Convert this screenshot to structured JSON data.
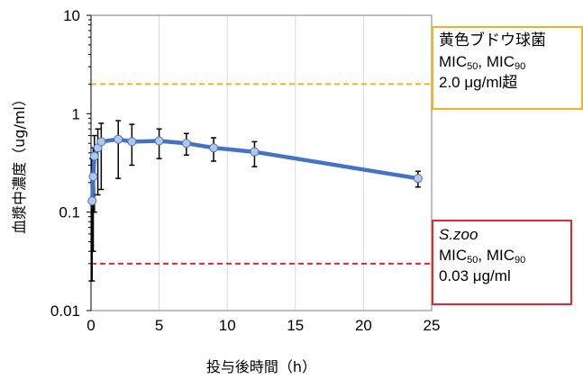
{
  "chart_data": {
    "type": "line",
    "title": "",
    "xlabel": "投与後時間（h）",
    "ylabel": "血漿中濃度（ug/ml）",
    "xlim": [
      0,
      25
    ],
    "ylim": [
      0.01,
      10
    ],
    "y_scale": "log",
    "x_ticks": [
      "0",
      "5",
      "10",
      "15",
      "20",
      "25"
    ],
    "y_ticks": [
      "0.01",
      "0.1",
      "1",
      "10"
    ],
    "grid": "vertical",
    "series": [
      {
        "name": "",
        "color": "#4472c4",
        "marker_fill": "#b4c7e7",
        "points": [
          {
            "x": 0.083,
            "y": 0.13,
            "lo": 0.02,
            "hi": 0.35
          },
          {
            "x": 0.167,
            "y": 0.23,
            "lo": 0.04,
            "hi": 0.45
          },
          {
            "x": 0.25,
            "y": 0.37,
            "lo": 0.1,
            "hi": 0.6
          },
          {
            "x": 0.5,
            "y": 0.45,
            "lo": 0.15,
            "hi": 0.7
          },
          {
            "x": 0.75,
            "y": 0.52,
            "lo": 0.17,
            "hi": 0.8
          },
          {
            "x": 2,
            "y": 0.55,
            "lo": 0.22,
            "hi": 0.85
          },
          {
            "x": 3,
            "y": 0.52,
            "lo": 0.3,
            "hi": 0.78
          },
          {
            "x": 5,
            "y": 0.53,
            "lo": 0.35,
            "hi": 0.7
          },
          {
            "x": 7,
            "y": 0.5,
            "lo": 0.38,
            "hi": 0.63
          },
          {
            "x": 9,
            "y": 0.45,
            "lo": 0.33,
            "hi": 0.57
          },
          {
            "x": 12,
            "y": 0.41,
            "lo": 0.29,
            "hi": 0.52
          },
          {
            "x": 24,
            "y": 0.22,
            "lo": 0.18,
            "hi": 0.26
          }
        ]
      }
    ],
    "reference_lines": [
      {
        "y": 2.0,
        "color": "#f5b21a",
        "style": "dashed"
      },
      {
        "y": 0.03,
        "color": "#e8262b",
        "style": "dashed"
      }
    ]
  },
  "annotations": {
    "yellow": {
      "title": "黄色ブドウ球菌",
      "mic_a": "MIC",
      "mic_a_sub": "50",
      "mic_sep": ", ",
      "mic_b": "MIC",
      "mic_b_sub": "90",
      "value": "2.0 μg/ml超",
      "border_color": "#f5b21a"
    },
    "red": {
      "title": "S.zoo",
      "mic_a": "MIC",
      "mic_a_sub": "50",
      "mic_sep": ", ",
      "mic_b": "MIC",
      "mic_b_sub": "90",
      "value": "0.03 μg/ml",
      "border_color": "#e8262b"
    }
  }
}
